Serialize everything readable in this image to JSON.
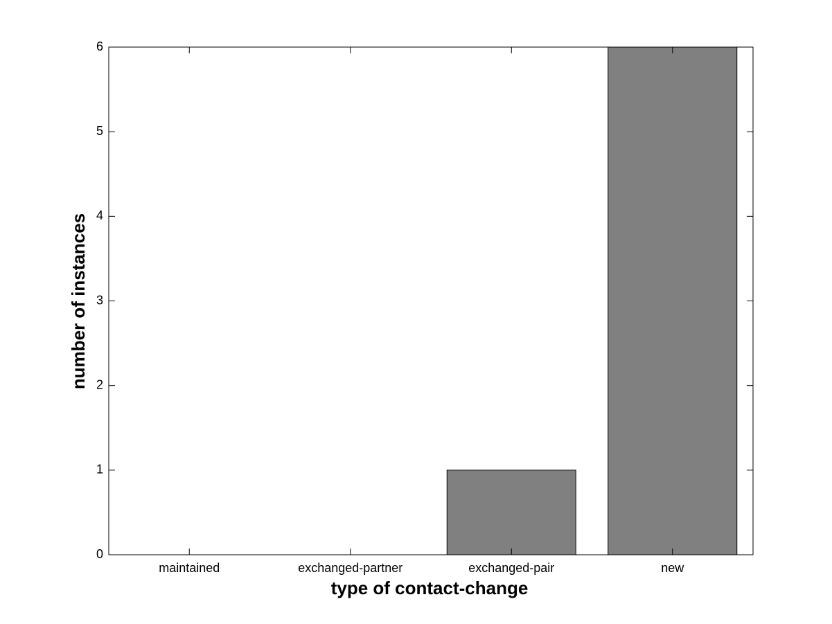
{
  "chart_data": {
    "type": "bar",
    "x_label": "type of contact-change",
    "y_label": "number of instances",
    "categories": [
      "maintained",
      "exchanged-partner",
      "exchanged-pair",
      "new"
    ],
    "values": [
      0,
      0,
      1,
      6
    ],
    "color": "#808080",
    "ylim": [
      0,
      6
    ],
    "yticks": [
      0,
      1,
      2,
      3,
      4,
      5,
      6
    ],
    "grid": false
  }
}
